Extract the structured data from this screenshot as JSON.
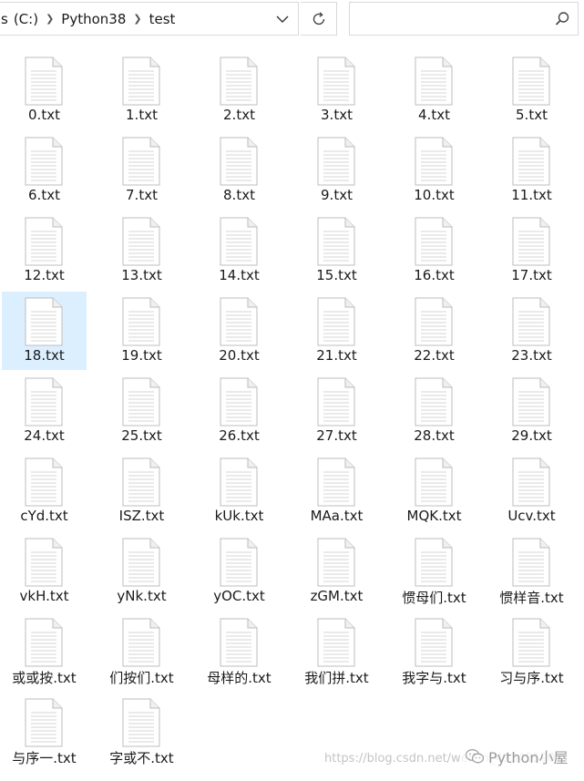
{
  "toolbar": {
    "breadcrumb": {
      "prefix": "s",
      "items": [
        {
          "label": "(C:)"
        },
        {
          "label": "Python38"
        },
        {
          "label": "test"
        }
      ]
    },
    "search": {
      "value": "",
      "placeholder": ""
    },
    "icons": {
      "dropdown": "chevron-down-icon",
      "refresh": "refresh-icon",
      "search": "search-icon"
    }
  },
  "files": [
    {
      "name": "0.txt"
    },
    {
      "name": "1.txt"
    },
    {
      "name": "2.txt"
    },
    {
      "name": "3.txt"
    },
    {
      "name": "4.txt"
    },
    {
      "name": "5.txt"
    },
    {
      "name": "6.txt"
    },
    {
      "name": "7.txt"
    },
    {
      "name": "8.txt"
    },
    {
      "name": "9.txt"
    },
    {
      "name": "10.txt"
    },
    {
      "name": "11.txt"
    },
    {
      "name": "12.txt"
    },
    {
      "name": "13.txt"
    },
    {
      "name": "14.txt"
    },
    {
      "name": "15.txt"
    },
    {
      "name": "16.txt"
    },
    {
      "name": "17.txt"
    },
    {
      "name": "18.txt",
      "selected": true
    },
    {
      "name": "19.txt"
    },
    {
      "name": "20.txt"
    },
    {
      "name": "21.txt"
    },
    {
      "name": "22.txt"
    },
    {
      "name": "23.txt"
    },
    {
      "name": "24.txt"
    },
    {
      "name": "25.txt"
    },
    {
      "name": "26.txt"
    },
    {
      "name": "27.txt"
    },
    {
      "name": "28.txt"
    },
    {
      "name": "29.txt"
    },
    {
      "name": "cYd.txt"
    },
    {
      "name": "ISZ.txt"
    },
    {
      "name": "kUk.txt"
    },
    {
      "name": "MAa.txt"
    },
    {
      "name": "MQK.txt"
    },
    {
      "name": "Ucv.txt"
    },
    {
      "name": "vkH.txt"
    },
    {
      "name": "yNk.txt"
    },
    {
      "name": "yOC.txt"
    },
    {
      "name": "zGM.txt"
    },
    {
      "name": "惯母们.txt"
    },
    {
      "name": "惯样音.txt"
    },
    {
      "name": "或或按.txt"
    },
    {
      "name": "们按们.txt"
    },
    {
      "name": "母样的.txt"
    },
    {
      "name": "我们拼.txt"
    },
    {
      "name": "我字与.txt"
    },
    {
      "name": "习与序.txt"
    },
    {
      "name": "与序一.txt"
    },
    {
      "name": "字或不.txt"
    }
  ],
  "file_icon": "text-document-icon",
  "selection_color": "#dcefff",
  "watermark": {
    "url": "https://blog.csdn.net/weixin_49345590",
    "brand": "Python小屋",
    "icon": "wechat-icon"
  }
}
